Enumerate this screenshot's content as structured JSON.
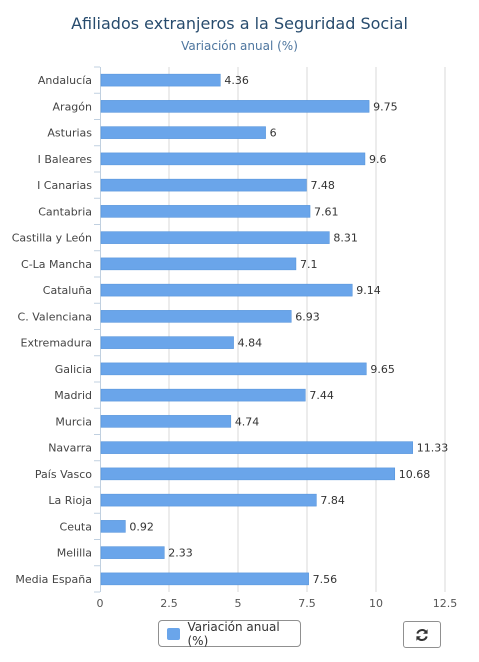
{
  "header": {
    "title": "Afiliados extranjeros a la Seguridad Social",
    "subtitle": "Variación anual (%)"
  },
  "legend": {
    "label": "Variación anual (%)"
  },
  "toolbar": {
    "refresh_icon": "refresh-icon"
  },
  "colors": {
    "bar": "#6aa5ea",
    "bar_border": "#4f8fd8",
    "grid": "#d8d8d8",
    "axis": "#c0d0e0"
  },
  "chart_data": {
    "type": "bar",
    "orientation": "horizontal",
    "title": "Afiliados extranjeros a la Seguridad Social",
    "subtitle": "Variación anual (%)",
    "categories": [
      "Andalucía",
      "Aragón",
      "Asturias",
      "I Baleares",
      "I Canarias",
      "Cantabria",
      "Castilla y León",
      "C-La Mancha",
      "Cataluña",
      "C. Valenciana",
      "Extremadura",
      "Galicia",
      "Madrid",
      "Murcia",
      "Navarra",
      "País Vasco",
      "La Rioja",
      "Ceuta",
      "Melilla",
      "Media España"
    ],
    "series": [
      {
        "name": "Variación anual (%)",
        "values": [
          4.36,
          9.75,
          6,
          9.6,
          7.48,
          7.61,
          8.31,
          7.1,
          9.14,
          6.93,
          4.84,
          9.65,
          7.44,
          4.74,
          11.33,
          10.68,
          7.84,
          0.92,
          2.33,
          7.56
        ],
        "labels": [
          "4.36",
          "9.75",
          "6",
          "9.6",
          "7.48",
          "7.61",
          "8.31",
          "7.1",
          "9.14",
          "6.93",
          "4.84",
          "9.65",
          "7.44",
          "4.74",
          "11.33",
          "10.68",
          "7.84",
          "0.92",
          "2.33",
          "7.56"
        ]
      }
    ],
    "xlim": [
      0,
      12.5
    ],
    "ticks": [
      0,
      2.5,
      5,
      7.5,
      10,
      12.5
    ],
    "tick_labels": [
      "0",
      "2.5",
      "5",
      "7.5",
      "10",
      "12.5"
    ],
    "grid": true,
    "legend_position": "bottom-center"
  }
}
